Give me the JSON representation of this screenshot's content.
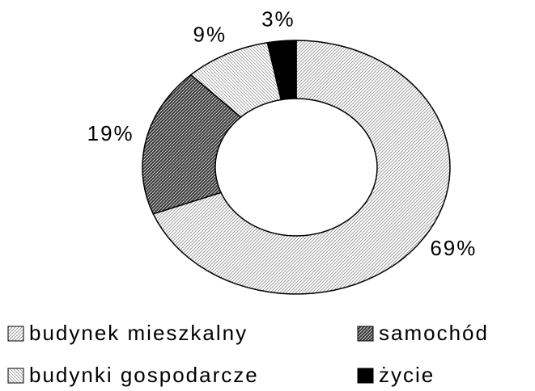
{
  "chart_data": {
    "type": "donut",
    "categories": [
      "budynek mieszkalny",
      "samochód",
      "budynki gospodarcze",
      "życie"
    ],
    "values": [
      69,
      19,
      9,
      3
    ],
    "value_labels": [
      "69%",
      "19%",
      "9%",
      "3%"
    ],
    "colors": [
      "#c8c8c8",
      "#3c3c3c",
      "#e4e4e4",
      "#000000"
    ]
  }
}
